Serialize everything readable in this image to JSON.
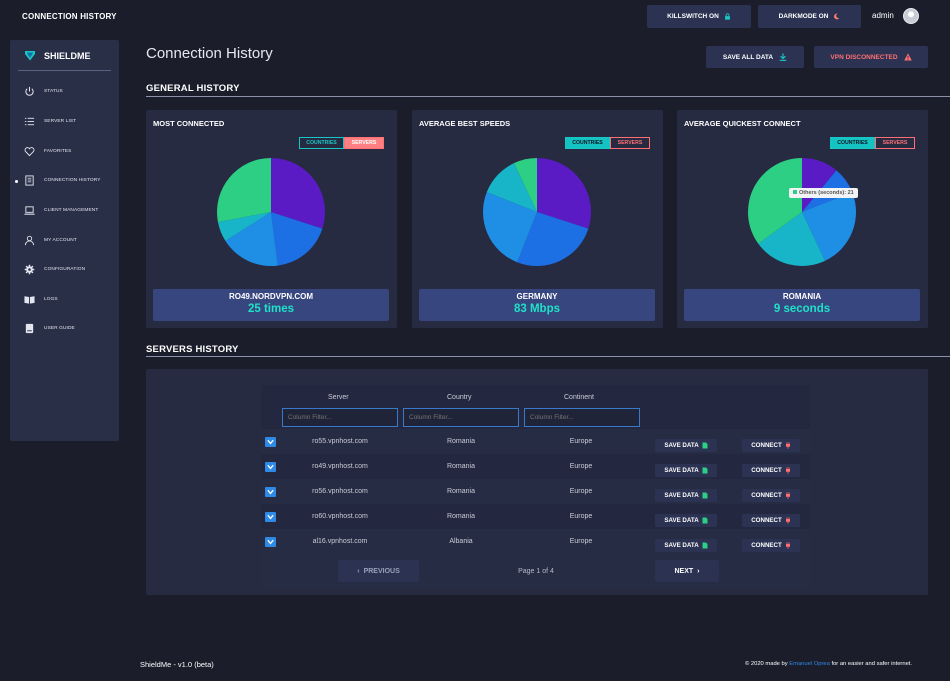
{
  "header": {
    "title": "CONNECTION HISTORY",
    "killswitch_label": "KILLSWITCH ON",
    "darkmode_label": "DARKMODE ON",
    "username": "admin"
  },
  "sidebar": {
    "brand": "SHIELDME",
    "items": [
      {
        "label": "STATUS",
        "icon": "power-icon"
      },
      {
        "label": "SERVER LIST",
        "icon": "list-icon"
      },
      {
        "label": "FAVORITES",
        "icon": "heart-icon"
      },
      {
        "label": "CONNECTION HISTORY",
        "icon": "document-icon",
        "active": true
      },
      {
        "label": "CLIENT MANAGEMENT",
        "icon": "laptop-icon"
      },
      {
        "label": "MY ACCOUNT",
        "icon": "user-icon"
      },
      {
        "label": "CONFIGURATION",
        "icon": "gear-icon"
      },
      {
        "label": "LOGS",
        "icon": "book-icon"
      },
      {
        "label": "USER GUIDE",
        "icon": "guide-icon"
      }
    ]
  },
  "page": {
    "title": "Connection History",
    "save_all_label": "SAVE ALL DATA",
    "vpn_status_label": "VPN DISCONNECTED"
  },
  "general_history": {
    "title": "GENERAL HISTORY",
    "toggle_countries": "COUNTRIES",
    "toggle_servers": "SERVERS",
    "cards": [
      {
        "title": "MOST CONNECTED",
        "active_toggle": "servers",
        "footer_name": "RO49.NORDVPN.COM",
        "footer_value": "25 times",
        "slices": [
          {
            "value": 30,
            "color": "#5a1bc4"
          },
          {
            "value": 18,
            "color": "#1d6fe4"
          },
          {
            "value": 18,
            "color": "#1f8fe6"
          },
          {
            "value": 6,
            "color": "#18b5c9"
          },
          {
            "value": 28,
            "color": "#2dcf84"
          }
        ]
      },
      {
        "title": "AVERAGE BEST SPEEDS",
        "active_toggle": "countries",
        "footer_name": "GERMANY",
        "footer_value": "83 Mbps",
        "slices": [
          {
            "value": 30,
            "color": "#5a1bc4"
          },
          {
            "value": 26,
            "color": "#1d6fe4"
          },
          {
            "value": 25,
            "color": "#1f8fe6"
          },
          {
            "value": 12,
            "color": "#18b5c9"
          },
          {
            "value": 7,
            "color": "#2dcf84"
          }
        ]
      },
      {
        "title": "AVERAGE QUICKEST CONNECT",
        "active_toggle": "countries",
        "footer_name": "ROMANIA",
        "footer_value": "9 seconds",
        "tooltip": "Others (seconds): 21",
        "slices": [
          {
            "value": 11,
            "color": "#5a1bc4"
          },
          {
            "value": 8,
            "color": "#1d6fe4"
          },
          {
            "value": 24,
            "color": "#1f8fe6"
          },
          {
            "value": 22,
            "color": "#18b5c9"
          },
          {
            "value": 35,
            "color": "#2dcf84"
          }
        ]
      }
    ]
  },
  "servers_history": {
    "title": "SERVERS HISTORY",
    "columns": [
      "Server",
      "Country",
      "Continent"
    ],
    "filter_placeholder": "Column Filter...",
    "save_data_label": "SAVE DATA",
    "connect_label": "CONNECT",
    "rows": [
      {
        "server": "ro55.vpnhost.com",
        "country": "Romania",
        "continent": "Europe"
      },
      {
        "server": "ro49.vpnhost.com",
        "country": "Romania",
        "continent": "Europe"
      },
      {
        "server": "ro56.vpnhost.com",
        "country": "Romania",
        "continent": "Europe"
      },
      {
        "server": "ro60.vpnhost.com",
        "country": "Romania",
        "continent": "Europe"
      },
      {
        "server": "al16.vpnhost.com",
        "country": "Albania",
        "continent": "Europe"
      }
    ],
    "prev_label": "PREVIOUS",
    "next_label": "NEXT",
    "page_info": "Page 1 of 4"
  },
  "footer": {
    "version": "ShieldMe - v1.0 (beta)",
    "credit_prefix": "© 2020 made by ",
    "credit_author": "Emanuel Oprea",
    "credit_suffix": " for an easier and safer internet."
  }
}
